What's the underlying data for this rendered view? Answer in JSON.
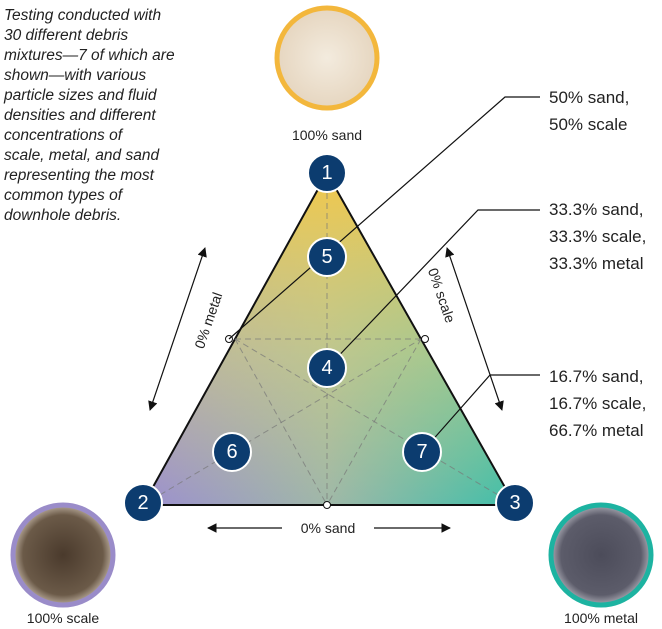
{
  "intro": {
    "lines": [
      "Testing conducted with",
      "30 different debris",
      "mixtures—7 of which are",
      "shown—with various",
      "particle sizes and fluid",
      "densities and different",
      "concentrations of",
      "scale, metal, and sand",
      "representing the most",
      "common types of",
      "downhole debris."
    ]
  },
  "samples": [
    {
      "label": "100% sand"
    },
    {
      "label": "100% scale"
    },
    {
      "label": "100% metal"
    }
  ],
  "nodes": [
    {
      "label": "1"
    },
    {
      "label": "2"
    },
    {
      "label": "3"
    },
    {
      "label": "4"
    },
    {
      "label": "5"
    },
    {
      "label": "6"
    },
    {
      "label": "7"
    }
  ],
  "edges": [
    {
      "label": "0% metal"
    },
    {
      "label": "0% scale"
    },
    {
      "label": "0% sand"
    }
  ],
  "callouts": [
    {
      "lines": [
        "50% sand,",
        "50% scale"
      ]
    },
    {
      "lines": [
        "33.3% sand,",
        "33.3% scale,",
        "33.3% metal"
      ]
    },
    {
      "lines": [
        "16.7% sand,",
        "16.7% scale,",
        "66.7% metal"
      ]
    }
  ]
}
